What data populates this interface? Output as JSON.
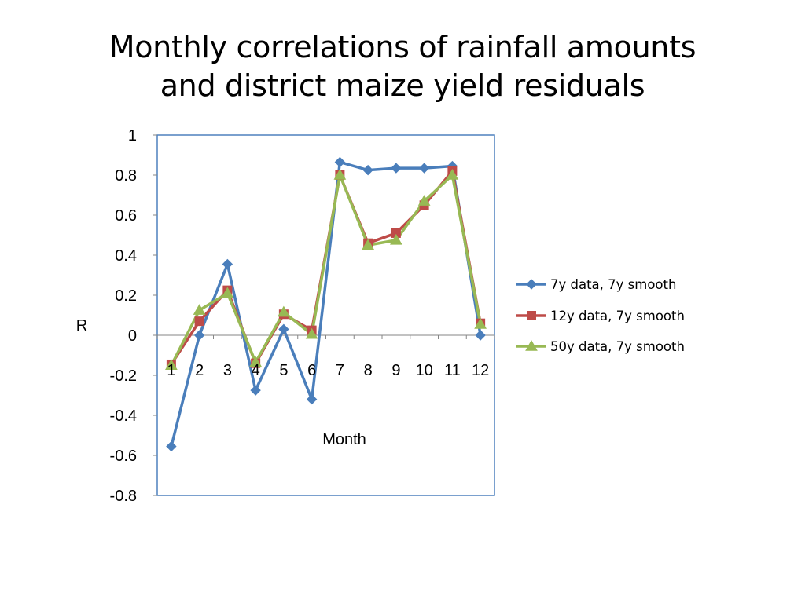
{
  "slide": {
    "title_line1": "Monthly correlations of rainfall amounts",
    "title_line2": "and district maize yield residuals"
  },
  "chart_data": {
    "type": "line",
    "title": "",
    "xlabel": "Month",
    "ylabel": "R",
    "ylim": [
      -0.8,
      1
    ],
    "yticks": [
      "1",
      "0.8",
      "0.6",
      "0.4",
      "0.2",
      "0",
      "-0.2",
      "-0.4",
      "-0.6",
      "-0.8"
    ],
    "ytick_values": [
      1,
      0.8,
      0.6,
      0.4,
      0.2,
      0,
      -0.2,
      -0.4,
      -0.6,
      -0.8
    ],
    "categories": [
      "1",
      "2",
      "3",
      "4",
      "5",
      "6",
      "7",
      "8",
      "9",
      "10",
      "11",
      "12"
    ],
    "grid": false,
    "legend_position": "right",
    "series": [
      {
        "name": "7y data, 7y smooth",
        "color": "#4a7ebb",
        "marker": "diamond",
        "values": [
          -0.555,
          0.0,
          0.355,
          -0.275,
          0.03,
          -0.32,
          0.865,
          0.825,
          0.835,
          0.835,
          0.845,
          0.0
        ]
      },
      {
        "name": "12y data, 7y smooth",
        "color": "#be4b48",
        "marker": "square",
        "values": [
          -0.145,
          0.07,
          0.225,
          -0.14,
          0.105,
          0.025,
          0.8,
          0.46,
          0.51,
          0.65,
          0.82,
          0.06
        ]
      },
      {
        "name": "50y data, 7y smooth",
        "color": "#98b954",
        "marker": "triangle",
        "values": [
          -0.15,
          0.125,
          0.21,
          -0.135,
          0.115,
          0.005,
          0.8,
          0.45,
          0.475,
          0.67,
          0.8,
          0.055
        ]
      }
    ]
  }
}
